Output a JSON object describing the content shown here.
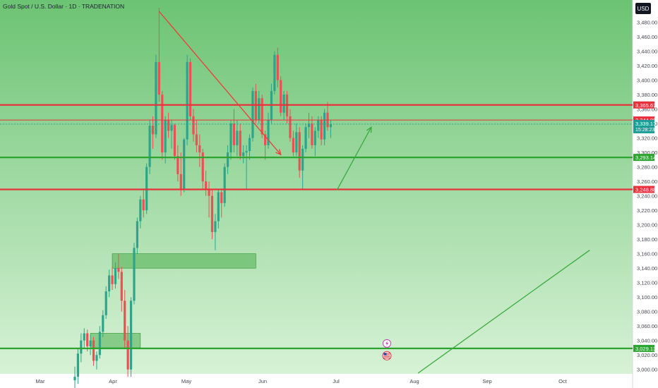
{
  "header": {
    "title": "Gold Spot / U.S. Dollar · 1D · TRADENATION",
    "currency": "USD"
  },
  "colors": {
    "bg_top": "#6cc373",
    "bg_bottom": "#d7f2d6",
    "up": "#2ea58a",
    "down": "#ee4f54",
    "resistance": "#e7323b",
    "support": "#2ca42f",
    "trend_down": "#ef3b3b",
    "trend_up": "#3aa93e",
    "zone": "#4cae4e",
    "current": "#1c9e96"
  },
  "chart_data": {
    "type": "candlestick",
    "ylim": [
      2990,
      3500
    ],
    "y_ticks": [
      "3,000.00",
      "3,020.00",
      "3,040.00",
      "3,060.00",
      "3,080.00",
      "3,100.00",
      "3,120.00",
      "3,140.00",
      "3,160.00",
      "3,180.00",
      "3,200.00",
      "3,220.00",
      "3,240.00",
      "3,260.00",
      "3,280.00",
      "3,300.00",
      "3,320.00",
      "3,340.00",
      "3,360.00",
      "3,380.00",
      "3,400.00",
      "3,420.00",
      "3,440.00",
      "3,460.00",
      "3,480.00"
    ],
    "x_ticks": [
      "Mar",
      "Apr",
      "May",
      "Jun",
      "Jul",
      "Aug",
      "Sep",
      "Oct"
    ],
    "candles": [
      [
        2985,
        3004,
        2962,
        2990
      ],
      [
        2990,
        3030,
        2980,
        3022
      ],
      [
        3022,
        3050,
        3010,
        3040
      ],
      [
        3040,
        3057,
        3030,
        3050
      ],
      [
        3050,
        3055,
        3025,
        3032
      ],
      [
        3032,
        3048,
        3020,
        3040
      ],
      [
        3040,
        3045,
        3005,
        3012
      ],
      [
        3012,
        3025,
        3000,
        3020
      ],
      [
        3020,
        3060,
        3015,
        3052
      ],
      [
        3052,
        3082,
        3045,
        3075
      ],
      [
        3075,
        3115,
        3070,
        3108
      ],
      [
        3108,
        3138,
        3100,
        3130
      ],
      [
        3130,
        3142,
        3110,
        3118
      ],
      [
        3118,
        3148,
        3112,
        3140
      ],
      [
        3140,
        3160,
        3125,
        3135
      ],
      [
        3135,
        3142,
        3080,
        3095
      ],
      [
        3095,
        3110,
        3030,
        3040
      ],
      [
        3040,
        3060,
        2990,
        3000
      ],
      [
        3000,
        3100,
        2990,
        3095
      ],
      [
        3095,
        3175,
        3090,
        3168
      ],
      [
        3168,
        3210,
        3160,
        3205
      ],
      [
        3205,
        3240,
        3195,
        3235
      ],
      [
        3235,
        3250,
        3210,
        3220
      ],
      [
        3220,
        3285,
        3215,
        3280
      ],
      [
        3280,
        3345,
        3270,
        3337
      ],
      [
        3337,
        3350,
        3305,
        3325
      ],
      [
        3325,
        3435,
        3320,
        3425
      ],
      [
        3425,
        3500,
        3370,
        3380
      ],
      [
        3380,
        3385,
        3290,
        3300
      ],
      [
        3300,
        3350,
        3285,
        3345
      ],
      [
        3345,
        3355,
        3320,
        3330
      ],
      [
        3330,
        3345,
        3305,
        3338
      ],
      [
        3338,
        3340,
        3290,
        3295
      ],
      [
        3295,
        3310,
        3260,
        3270
      ],
      [
        3270,
        3300,
        3240,
        3250
      ],
      [
        3250,
        3320,
        3245,
        3318
      ],
      [
        3318,
        3435,
        3310,
        3425
      ],
      [
        3425,
        3430,
        3345,
        3350
      ],
      [
        3350,
        3360,
        3315,
        3325
      ],
      [
        3325,
        3345,
        3300,
        3310
      ],
      [
        3310,
        3325,
        3280,
        3300
      ],
      [
        3300,
        3305,
        3250,
        3260
      ],
      [
        3260,
        3275,
        3240,
        3248
      ],
      [
        3248,
        3260,
        3210,
        3240
      ],
      [
        3240,
        3250,
        3180,
        3190
      ],
      [
        3190,
        3215,
        3165,
        3205
      ],
      [
        3205,
        3250,
        3195,
        3245
      ],
      [
        3245,
        3250,
        3210,
        3230
      ],
      [
        3230,
        3285,
        3225,
        3280
      ],
      [
        3280,
        3310,
        3270,
        3300
      ],
      [
        3300,
        3345,
        3290,
        3340
      ],
      [
        3340,
        3360,
        3300,
        3310
      ],
      [
        3310,
        3345,
        3295,
        3330
      ],
      [
        3330,
        3340,
        3290,
        3295
      ],
      [
        3295,
        3310,
        3285,
        3300
      ],
      [
        3300,
        3310,
        3250,
        3302
      ],
      [
        3302,
        3325,
        3290,
        3320
      ],
      [
        3320,
        3390,
        3315,
        3385
      ],
      [
        3385,
        3395,
        3340,
        3345
      ],
      [
        3345,
        3385,
        3340,
        3375
      ],
      [
        3375,
        3380,
        3320,
        3325
      ],
      [
        3325,
        3330,
        3290,
        3310
      ],
      [
        3310,
        3355,
        3305,
        3345
      ],
      [
        3345,
        3395,
        3340,
        3385
      ],
      [
        3385,
        3440,
        3380,
        3435
      ],
      [
        3435,
        3445,
        3390,
        3400
      ],
      [
        3400,
        3405,
        3350,
        3355
      ],
      [
        3355,
        3385,
        3345,
        3380
      ],
      [
        3380,
        3385,
        3340,
        3350
      ],
      [
        3350,
        3360,
        3315,
        3320
      ],
      [
        3320,
        3330,
        3295,
        3300
      ],
      [
        3300,
        3340,
        3295,
        3328
      ],
      [
        3328,
        3335,
        3265,
        3275
      ],
      [
        3275,
        3310,
        3250,
        3305
      ],
      [
        3305,
        3340,
        3300,
        3335
      ],
      [
        3335,
        3355,
        3320,
        3340
      ],
      [
        3340,
        3350,
        3305,
        3310
      ],
      [
        3310,
        3335,
        3295,
        3330
      ],
      [
        3330,
        3350,
        3320,
        3345
      ],
      [
        3345,
        3350,
        3310,
        3318
      ],
      [
        3318,
        3360,
        3310,
        3355
      ],
      [
        3355,
        3370,
        3330,
        3335
      ],
      [
        3335,
        3345,
        3320,
        3339
      ]
    ],
    "levels": [
      {
        "kind": "resistance",
        "value": 3365.67,
        "label": "3,365.67"
      },
      {
        "kind": "resistance",
        "value": 3344.89,
        "label": "3,344.89"
      },
      {
        "kind": "current",
        "value": 3339.17,
        "label": "3,339.17",
        "sub": "15:28:23"
      },
      {
        "kind": "support",
        "value": 3293.14,
        "label": "3,293.14"
      },
      {
        "kind": "resistance",
        "value": 3248.88,
        "label": "3,248.88"
      },
      {
        "kind": "support",
        "value": 3029.13,
        "label": "3,029.13"
      }
    ],
    "zones": [
      {
        "from_bar": 12,
        "to_bar": 58,
        "ymin": 3140,
        "ymax": 3160
      },
      {
        "from_bar": 5,
        "to_bar": 21,
        "ymin": 3030,
        "ymax": 3050
      }
    ],
    "trendlines": [
      {
        "kind": "trend_down",
        "from": [
          27,
          3495
        ],
        "to": [
          66,
          3297
        ],
        "arrow": true
      },
      {
        "kind": "trend_up",
        "from": [
          84,
          3248
        ],
        "to": [
          95,
          3335
        ],
        "arrow": true
      },
      {
        "kind": "trend_up",
        "from": [
          110,
          2995
        ],
        "to": [
          165,
          3165
        ],
        "arrow": false
      }
    ],
    "events": [
      {
        "bar": 100,
        "icon": "lightning-icon",
        "y": 3036
      },
      {
        "bar": 100,
        "icon": "us-flag-icon",
        "y": 3019
      }
    ]
  }
}
